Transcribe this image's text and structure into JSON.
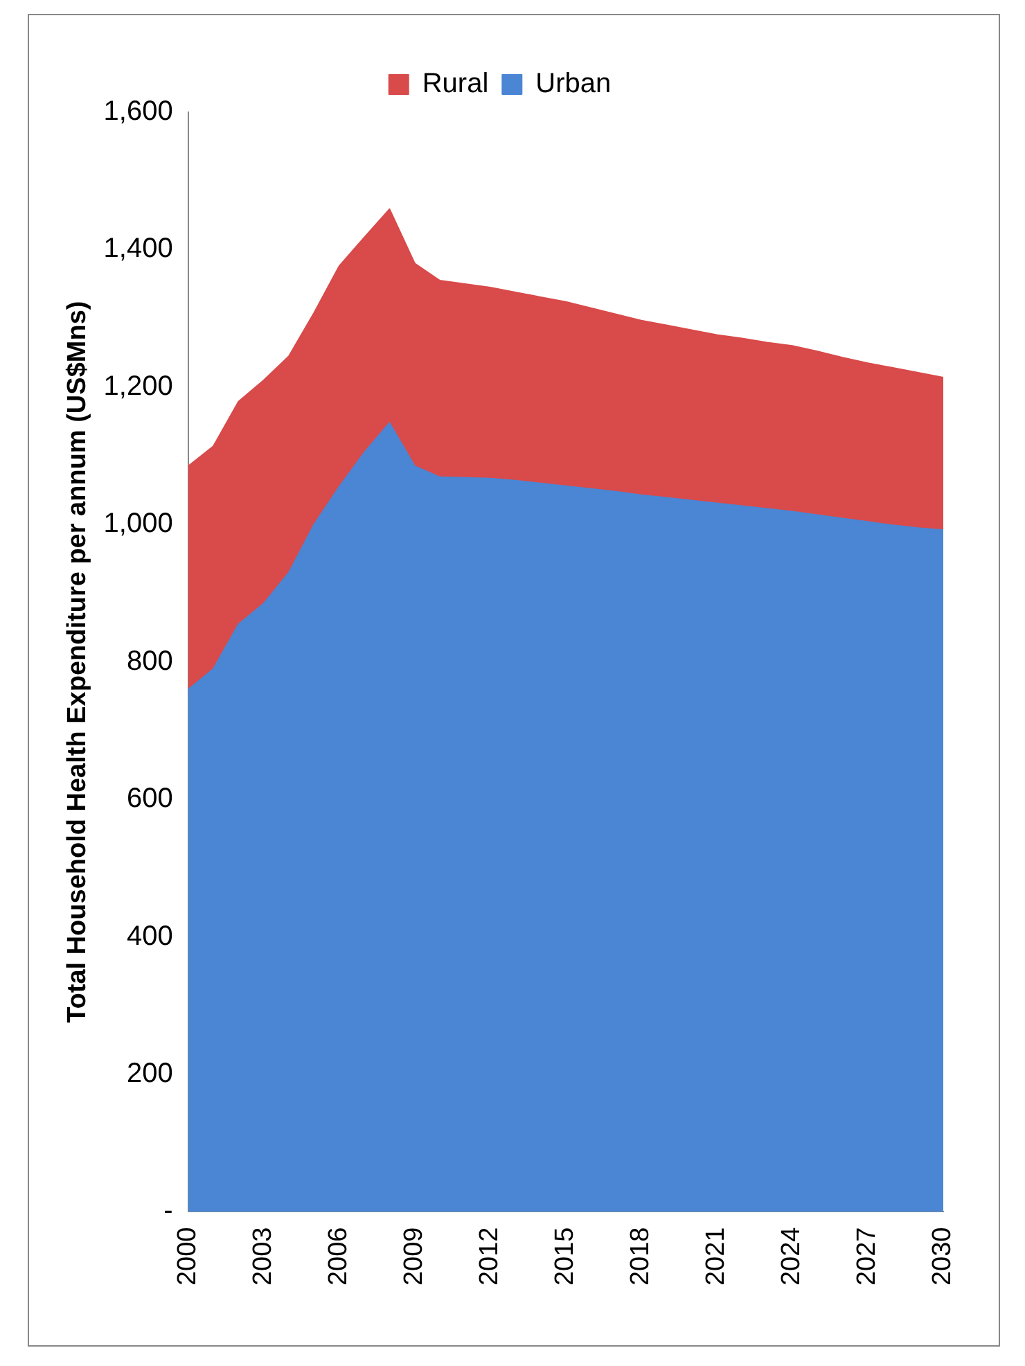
{
  "chart_data": {
    "type": "area",
    "stacked": true,
    "ylabel": "Total Household Health Expenditure per annum (US$Mns)",
    "categories": [
      "2000",
      null,
      null,
      "2003",
      null,
      null,
      "2006",
      null,
      null,
      "2009",
      null,
      null,
      "2012",
      null,
      null,
      "2015",
      null,
      null,
      "2018",
      null,
      null,
      "2021",
      null,
      null,
      "2024",
      null,
      null,
      "2027",
      null,
      null,
      "2030"
    ],
    "series": [
      {
        "name": "Urban",
        "color": "#4a86d4",
        "values": [
          760,
          790,
          855,
          885,
          930,
          1000,
          1055,
          1105,
          1148,
          1085,
          1069,
          1068,
          1067,
          1064,
          1060,
          1056,
          1052,
          1048,
          1043,
          1039,
          1035,
          1031,
          1027,
          1023,
          1019,
          1014,
          1009,
          1004,
          999,
          995,
          992
        ]
      },
      {
        "name": "Rural",
        "color": "#d94a4a",
        "values": [
          325,
          324,
          324,
          325,
          315,
          308,
          321,
          313,
          311,
          295,
          286,
          282,
          278,
          274,
          271,
          268,
          263,
          258,
          254,
          251,
          248,
          245,
          244,
          242,
          241,
          238,
          234,
          231,
          229,
          226,
          222
        ]
      }
    ],
    "ylim": [
      0,
      1600
    ],
    "yticks": [
      {
        "value": 0,
        "label": "-"
      },
      200,
      400,
      600,
      800,
      {
        "value": 1000,
        "label": "1,000"
      },
      {
        "value": 1200,
        "label": "1,200"
      },
      {
        "value": 1400,
        "label": "1,400"
      },
      {
        "value": 1600,
        "label": "1,600"
      }
    ],
    "grid": false,
    "legend": "top",
    "marker": "none"
  }
}
